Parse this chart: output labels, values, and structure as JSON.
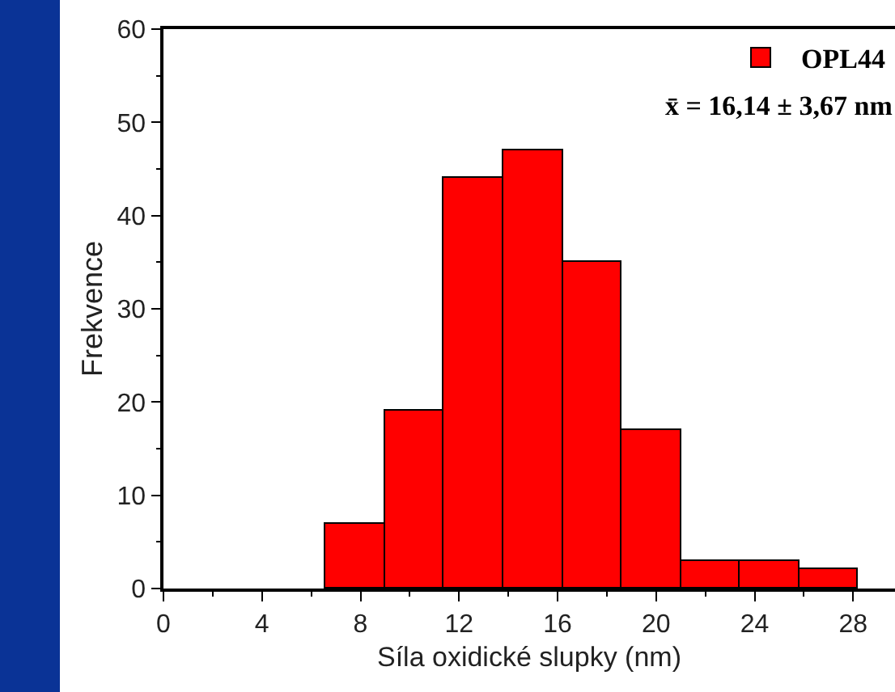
{
  "chart_data": {
    "type": "histogram",
    "xlabel": "Síla oxidické slupky (nm)",
    "ylabel": "Frekvence",
    "bins": [
      6.6,
      9,
      11.4,
      13.8,
      16.2,
      18.6,
      21,
      23.4,
      25.8,
      28.2
    ],
    "series": [
      {
        "name": "OPL44",
        "color": "#ff0000",
        "values": [
          7,
          19,
          44,
          47,
          35,
          17,
          3,
          3,
          2
        ]
      }
    ],
    "xlim": [
      0,
      29.7
    ],
    "xticks": [
      0,
      4,
      8,
      12,
      16,
      20,
      24,
      28
    ],
    "ylim": [
      0,
      60
    ],
    "yticks": [
      0,
      10,
      20,
      30,
      40,
      50,
      60
    ],
    "annotations": [
      "x̄ = 16,14 ± 3,67 nm"
    ],
    "legend": "top right",
    "grid": false
  }
}
